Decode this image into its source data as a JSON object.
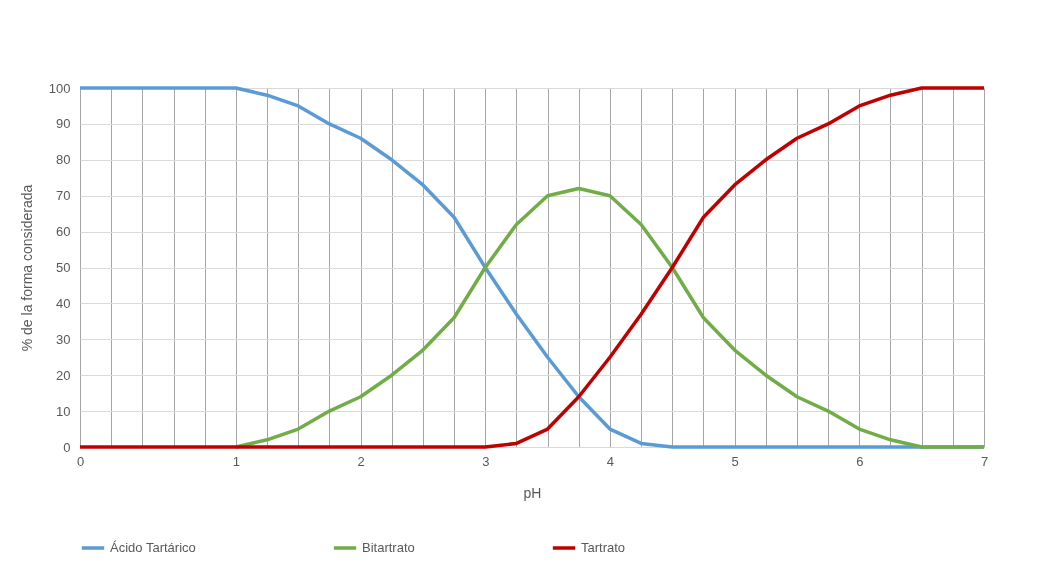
{
  "chart_data": {
    "type": "line",
    "xlabel": "pH",
    "ylabel": "% de la forma considerada",
    "categories": [
      "0",
      null,
      null,
      null,
      null,
      "1",
      null,
      null,
      null,
      "2",
      null,
      null,
      null,
      "3",
      null,
      null,
      null,
      "4",
      null,
      null,
      null,
      "5",
      null,
      null,
      null,
      "6",
      null,
      null,
      null,
      "7"
    ],
    "series": [
      {
        "name": "Ácido Tartárico",
        "color": "#5b9bd5",
        "values": [
          100,
          100,
          100,
          100,
          100,
          100,
          98,
          95,
          90,
          86,
          80,
          73,
          64,
          50,
          37,
          25,
          14,
          5,
          1,
          0,
          0,
          0,
          0,
          0,
          0,
          0,
          0,
          0,
          0,
          0
        ]
      },
      {
        "name": "Bitartrato",
        "color": "#70ad47",
        "values": [
          null,
          null,
          null,
          null,
          null,
          0,
          2,
          5,
          10,
          14,
          20,
          27,
          36,
          50,
          62,
          70,
          72,
          70,
          62,
          50,
          36,
          27,
          20,
          14,
          10,
          5,
          2,
          0,
          0,
          0
        ]
      },
      {
        "name": "Tartrato",
        "color": "#c00000",
        "values": [
          0,
          0,
          0,
          0,
          0,
          0,
          0,
          0,
          0,
          0,
          0,
          0,
          0,
          0,
          1,
          5,
          14,
          25,
          37,
          50,
          64,
          73,
          80,
          86,
          90,
          95,
          98,
          100,
          100,
          100
        ]
      }
    ],
    "ylim": [
      0,
      100
    ],
    "yticks": [
      0,
      10,
      20,
      30,
      40,
      50,
      60,
      70,
      80,
      90,
      100
    ],
    "grid": true,
    "legend": "bottom",
    "marker": "none",
    "line_style": "solid"
  }
}
